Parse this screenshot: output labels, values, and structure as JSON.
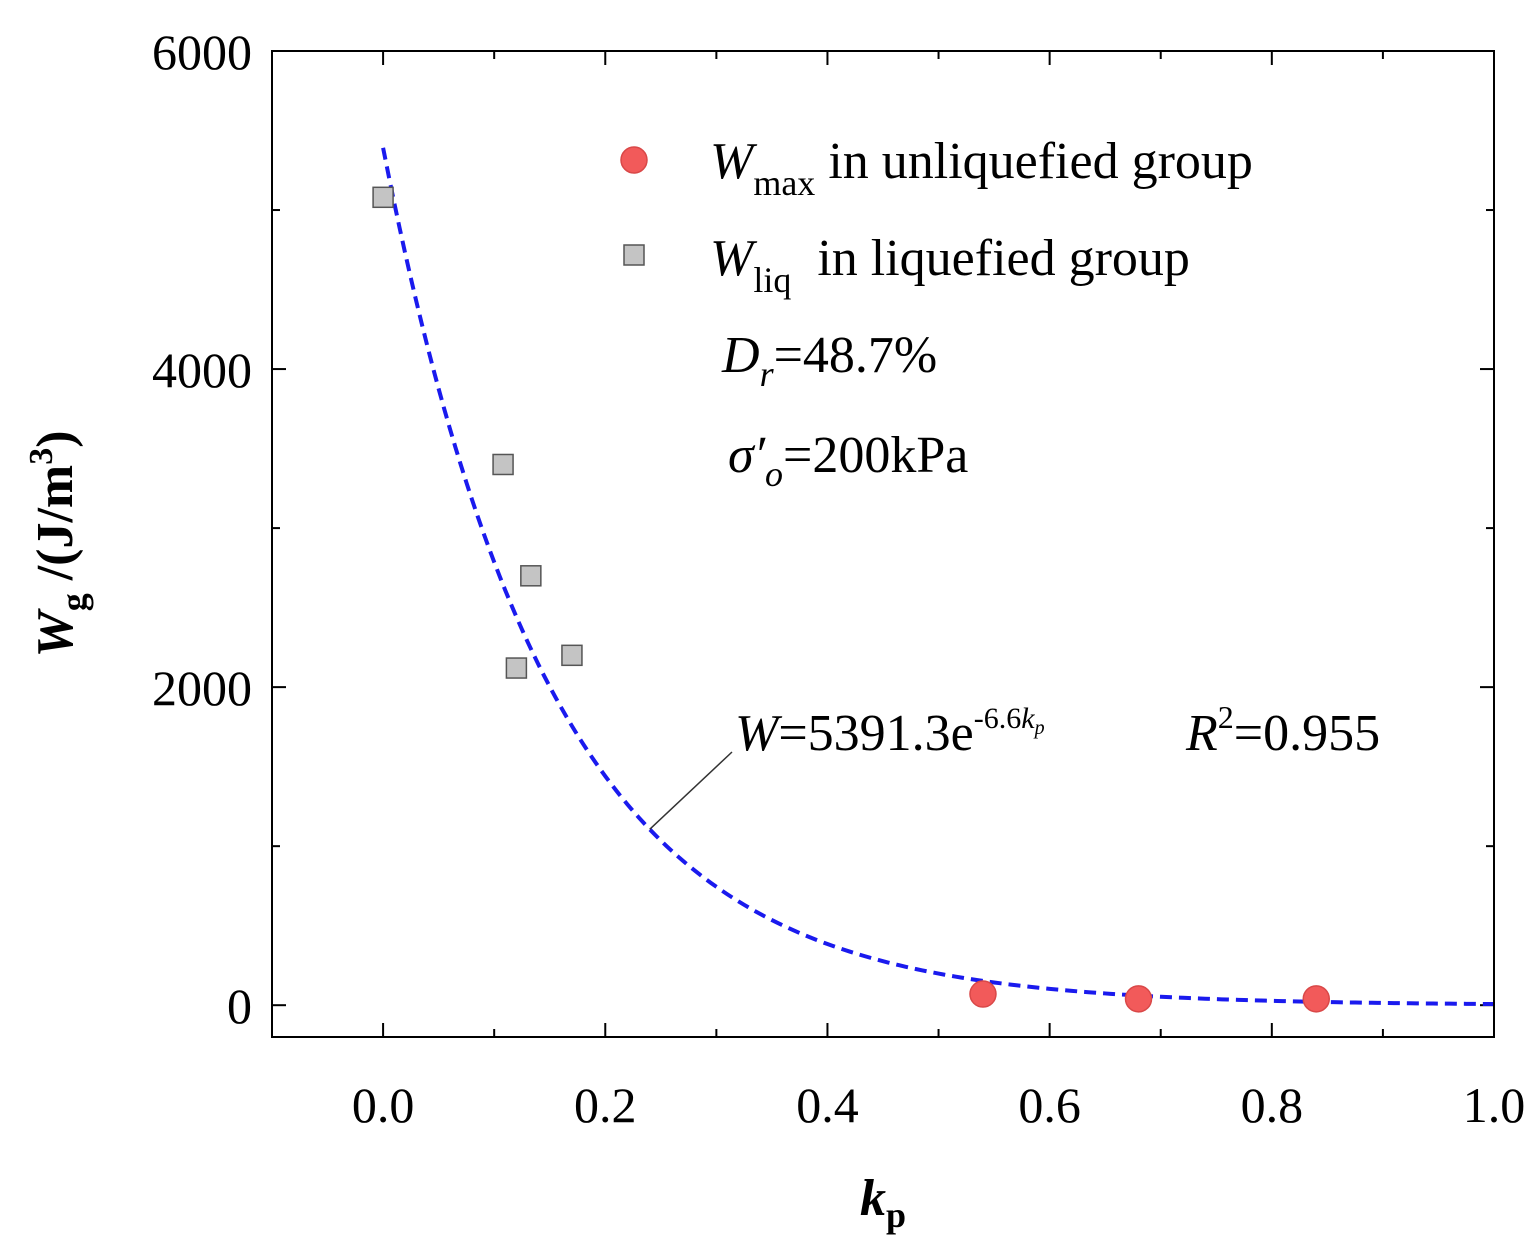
{
  "chart_data": {
    "type": "scatter",
    "xlabel": {
      "main": "k",
      "sub": "p"
    },
    "ylabel": {
      "main": "W",
      "sub": "g",
      "unit": " /(J/m",
      "unit_sup": "3",
      "unit_close": ")"
    },
    "xlim": [
      -0.1,
      1.0
    ],
    "ylim": [
      -200,
      6000
    ],
    "xticks": [
      0.0,
      0.2,
      0.4,
      0.6,
      0.8,
      1.0
    ],
    "xtick_labels": [
      "0.0",
      "0.2",
      "0.4",
      "0.6",
      "0.8",
      "1.0"
    ],
    "yticks": [
      0,
      2000,
      4000,
      6000
    ],
    "ytick_labels": [
      "0",
      "2000",
      "4000",
      "6000"
    ],
    "x_minor_step": 0.1,
    "y_minor_step": 1000,
    "series": [
      {
        "name": "W_max in unliquefied group",
        "marker": "circle",
        "color": "#f25a5a",
        "points": [
          {
            "x": 0.54,
            "y": 70
          },
          {
            "x": 0.68,
            "y": 40
          },
          {
            "x": 0.84,
            "y": 40
          }
        ]
      },
      {
        "name": "W_liq in liquefied group",
        "marker": "square",
        "color": "#c4c4c4",
        "points": [
          {
            "x": 0.0,
            "y": 5080
          },
          {
            "x": 0.108,
            "y": 3400
          },
          {
            "x": 0.133,
            "y": 2700
          },
          {
            "x": 0.12,
            "y": 2120
          },
          {
            "x": 0.17,
            "y": 2200
          }
        ]
      }
    ],
    "fit": {
      "a": 5391.3,
      "b": -6.6,
      "x_range": [
        0.0,
        1.0
      ],
      "color": "#1a1aee",
      "style": "dashed",
      "pointer_x": 0.24
    },
    "legend": {
      "position": "top-right",
      "entries": [
        {
          "main": "W",
          "sub": "max",
          "text": " in unliquefied group"
        },
        {
          "main": "W",
          "sub": "liq",
          "text": "  in liquefied group"
        }
      ]
    },
    "annotations": {
      "dr": {
        "main": "D",
        "sub": "r",
        "text": "=48.7%"
      },
      "sigma": {
        "main": "σ",
        "prime": "′",
        "sub": "o",
        "text": "=200kPa"
      },
      "equation": {
        "lhs": "W",
        "eq": "=5391.3e",
        "exp": "-6.6",
        "exp_var": "k",
        "exp_var_sub": "p",
        "r2": "R",
        "r2_sup": "2",
        "r2_val": "=0.955"
      }
    }
  }
}
